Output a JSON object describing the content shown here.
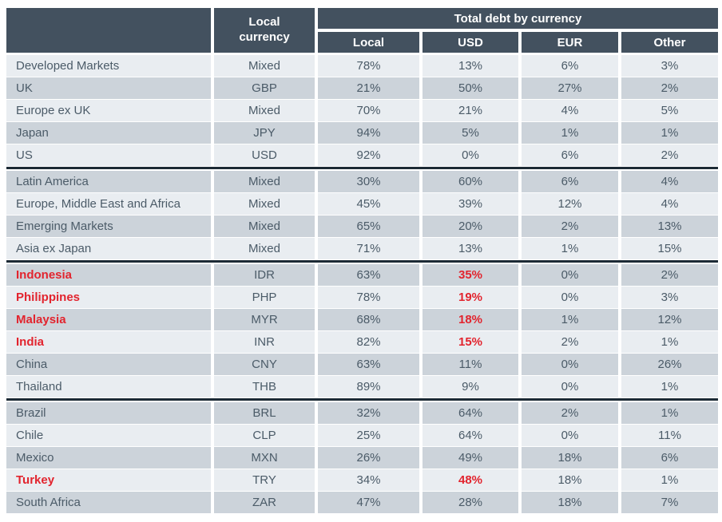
{
  "chart_data": {
    "type": "table",
    "title": "Total debt by currency",
    "group_header": "Total debt by currency",
    "columns_header": {
      "row_label": "",
      "local_currency": "Local currency"
    },
    "sub_columns": [
      "Local",
      "USD",
      "EUR",
      "Other"
    ],
    "rows": [
      {
        "name": "Developed Markets",
        "local_currency": "Mixed",
        "local": "78%",
        "usd": "13%",
        "eur": "6%",
        "other": "3%",
        "highlighted": false,
        "section_end": false
      },
      {
        "name": "UK",
        "local_currency": "GBP",
        "local": "21%",
        "usd": "50%",
        "eur": "27%",
        "other": "2%",
        "highlighted": false,
        "section_end": false
      },
      {
        "name": "Europe ex UK",
        "local_currency": "Mixed",
        "local": "70%",
        "usd": "21%",
        "eur": "4%",
        "other": "5%",
        "highlighted": false,
        "section_end": false
      },
      {
        "name": "Japan",
        "local_currency": "JPY",
        "local": "94%",
        "usd": "5%",
        "eur": "1%",
        "other": "1%",
        "highlighted": false,
        "section_end": false
      },
      {
        "name": "US",
        "local_currency": "USD",
        "local": "92%",
        "usd": "0%",
        "eur": "6%",
        "other": "2%",
        "highlighted": false,
        "section_end": true
      },
      {
        "name": "Latin America",
        "local_currency": "Mixed",
        "local": "30%",
        "usd": "60%",
        "eur": "6%",
        "other": "4%",
        "highlighted": false,
        "section_end": false
      },
      {
        "name": "Europe, Middle East and Africa",
        "local_currency": "Mixed",
        "local": "45%",
        "usd": "39%",
        "eur": "12%",
        "other": "4%",
        "highlighted": false,
        "section_end": false
      },
      {
        "name": "Emerging Markets",
        "local_currency": "Mixed",
        "local": "65%",
        "usd": "20%",
        "eur": "2%",
        "other": "13%",
        "highlighted": false,
        "section_end": false
      },
      {
        "name": "Asia ex Japan",
        "local_currency": "Mixed",
        "local": "71%",
        "usd": "13%",
        "eur": "1%",
        "other": "15%",
        "highlighted": false,
        "section_end": true
      },
      {
        "name": "Indonesia",
        "local_currency": "IDR",
        "local": "63%",
        "usd": "35%",
        "eur": "0%",
        "other": "2%",
        "highlighted": true,
        "section_end": false
      },
      {
        "name": "Philippines",
        "local_currency": "PHP",
        "local": "78%",
        "usd": "19%",
        "eur": "0%",
        "other": "3%",
        "highlighted": true,
        "section_end": false
      },
      {
        "name": "Malaysia",
        "local_currency": "MYR",
        "local": "68%",
        "usd": "18%",
        "eur": "1%",
        "other": "12%",
        "highlighted": true,
        "section_end": false
      },
      {
        "name": "India",
        "local_currency": "INR",
        "local": "82%",
        "usd": "15%",
        "eur": "2%",
        "other": "1%",
        "highlighted": true,
        "section_end": false
      },
      {
        "name": "China",
        "local_currency": "CNY",
        "local": "63%",
        "usd": "11%",
        "eur": "0%",
        "other": "26%",
        "highlighted": false,
        "section_end": false
      },
      {
        "name": "Thailand",
        "local_currency": "THB",
        "local": "89%",
        "usd": "9%",
        "eur": "0%",
        "other": "1%",
        "highlighted": false,
        "section_end": true
      },
      {
        "name": "Brazil",
        "local_currency": "BRL",
        "local": "32%",
        "usd": "64%",
        "eur": "2%",
        "other": "1%",
        "highlighted": false,
        "section_end": false
      },
      {
        "name": "Chile",
        "local_currency": "CLP",
        "local": "25%",
        "usd": "64%",
        "eur": "0%",
        "other": "11%",
        "highlighted": false,
        "section_end": false
      },
      {
        "name": "Mexico",
        "local_currency": "MXN",
        "local": "26%",
        "usd": "49%",
        "eur": "18%",
        "other": "6%",
        "highlighted": false,
        "section_end": false
      },
      {
        "name": "Turkey",
        "local_currency": "TRY",
        "local": "34%",
        "usd": "48%",
        "eur": "18%",
        "other": "1%",
        "highlighted": true,
        "section_end": false
      },
      {
        "name": "South Africa",
        "local_currency": "ZAR",
        "local": "47%",
        "usd": "28%",
        "eur": "18%",
        "other": "7%",
        "highlighted": false,
        "section_end": false
      }
    ]
  },
  "colors": {
    "header_bg": "#43515f",
    "row_light": "#e9edf1",
    "row_dark": "#ccd3da",
    "text": "#4b5b68",
    "highlight_red": "#e2242e",
    "section_divider": "#1c2a35",
    "gap": "#ffffff"
  }
}
